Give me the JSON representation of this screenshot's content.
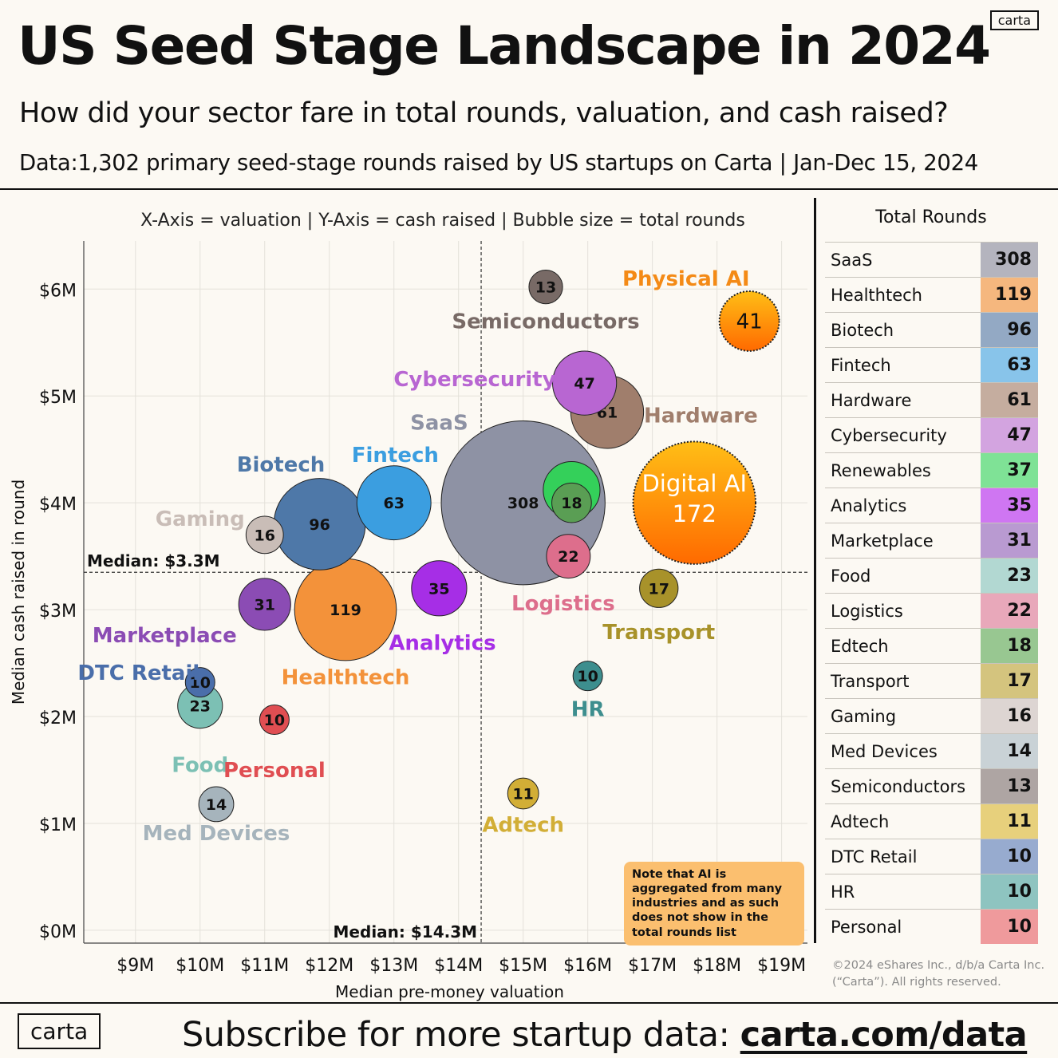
{
  "header": {
    "title": "US Seed Stage Landscape in 2024",
    "subtitle": "How did your sector fare in total rounds, valuation, and cash raised?",
    "data_note": "Data:1,302 primary seed-stage rounds raised by US startups on Carta | Jan-Dec 15, 2024",
    "brand": "carta"
  },
  "chart_data": {
    "type": "scatter",
    "title": "US Seed Stage Landscape in 2024",
    "legend_text": "X-Axis = valuation | Y-Axis = cash raised | Bubble size = total rounds",
    "xlabel": "Median pre-money valuation",
    "ylabel": "Median cash raised in round",
    "xlim": [
      8.2,
      19.4
    ],
    "ylim": [
      -0.12,
      6.45
    ],
    "xticks": [
      9,
      10,
      11,
      12,
      13,
      14,
      15,
      16,
      17,
      18,
      19
    ],
    "xtick_labels": [
      "$9M",
      "$10M",
      "$11M",
      "$12M",
      "$13M",
      "$14M",
      "$15M",
      "$16M",
      "$17M",
      "$18M",
      "$19M"
    ],
    "yticks": [
      0,
      1,
      2,
      3,
      4,
      5,
      6
    ],
    "ytick_labels": [
      "$0M",
      "$1M",
      "$2M",
      "$3M",
      "$4M",
      "$5M",
      "$6M"
    ],
    "grid": true,
    "median_x": 14.35,
    "median_y": 3.35,
    "median_x_label": "Median: $14.3M",
    "median_y_label": "Median: $3.3M",
    "series": [
      {
        "name": "SaaS",
        "x": 15.0,
        "y": 4.0,
        "rounds": 308,
        "color": "#8e92a4"
      },
      {
        "name": "Digital AI",
        "x": 17.65,
        "y": 4.0,
        "rounds": 172,
        "color": "#ff8f00",
        "ai": true
      },
      {
        "name": "Healthtech",
        "x": 12.25,
        "y": 3.0,
        "rounds": 119,
        "color": "#f3923a"
      },
      {
        "name": "Biotech",
        "x": 11.85,
        "y": 3.8,
        "rounds": 96,
        "color": "#4e78a8"
      },
      {
        "name": "Fintech",
        "x": 13.0,
        "y": 4.0,
        "rounds": 63,
        "color": "#3b9ee0"
      },
      {
        "name": "Hardware",
        "x": 16.3,
        "y": 4.85,
        "rounds": 61,
        "color": "#a07e6c"
      },
      {
        "name": "Cybersecurity",
        "x": 15.95,
        "y": 5.12,
        "rounds": 47,
        "color": "#b866d2"
      },
      {
        "name": "Physical AI",
        "x": 18.5,
        "y": 5.7,
        "rounds": 41,
        "color": "#ff8c00",
        "ai": true
      },
      {
        "name": "Renewables",
        "x": 15.75,
        "y": 4.12,
        "rounds": 37,
        "color": "#34d05a"
      },
      {
        "name": "Analytics",
        "x": 13.7,
        "y": 3.2,
        "rounds": 35,
        "color": "#a62ee6"
      },
      {
        "name": "Marketplace",
        "x": 11.0,
        "y": 3.05,
        "rounds": 31,
        "color": "#8b4cb4"
      },
      {
        "name": "Food",
        "x": 10.0,
        "y": 2.1,
        "rounds": 23,
        "color": "#7cc0b4"
      },
      {
        "name": "Logistics",
        "x": 15.7,
        "y": 3.5,
        "rounds": 22,
        "color": "#dd6e8c"
      },
      {
        "name": "Edtech",
        "x": 15.75,
        "y": 4.0,
        "rounds": 18,
        "color": "#5a9e54"
      },
      {
        "name": "Transport",
        "x": 17.1,
        "y": 3.2,
        "rounds": 17,
        "color": "#a8922a"
      },
      {
        "name": "Gaming",
        "x": 11.0,
        "y": 3.7,
        "rounds": 16,
        "color": "#c9bdb7"
      },
      {
        "name": "Med Devices",
        "x": 10.25,
        "y": 1.18,
        "rounds": 14,
        "color": "#a6b4bc"
      },
      {
        "name": "Semiconductors",
        "x": 15.35,
        "y": 6.02,
        "rounds": 13,
        "color": "#786a66"
      },
      {
        "name": "Adtech",
        "x": 15.0,
        "y": 1.28,
        "rounds": 11,
        "color": "#d2ae36"
      },
      {
        "name": "DTC Retail",
        "x": 10.0,
        "y": 2.32,
        "rounds": 10,
        "color": "#4a6eaa"
      },
      {
        "name": "HR",
        "x": 16.0,
        "y": 2.38,
        "rounds": 10,
        "color": "#3d8e8e"
      },
      {
        "name": "Personal",
        "x": 11.15,
        "y": 1.97,
        "rounds": 10,
        "color": "#e04e52"
      }
    ],
    "labels": [
      {
        "text": "SaaS",
        "x": 13.7,
        "y": 4.75,
        "color": "#8e92a4"
      },
      {
        "text": "Physical AI",
        "x": 17.52,
        "y": 6.1,
        "color": "#f48a16"
      },
      {
        "text": "Semiconductors",
        "x": 15.35,
        "y": 5.7,
        "color": "#786a66"
      },
      {
        "text": "Cybersecurity",
        "x": 14.25,
        "y": 5.16,
        "color": "#b866d2"
      },
      {
        "text": "Hardware",
        "x": 17.75,
        "y": 4.82,
        "color": "#a07e6c"
      },
      {
        "text": "Fintech",
        "x": 13.02,
        "y": 4.45,
        "color": "#3b9ee0"
      },
      {
        "text": "Biotech",
        "x": 11.25,
        "y": 4.36,
        "color": "#4e78a8"
      },
      {
        "text": "Gaming",
        "x": 10.0,
        "y": 3.85,
        "color": "#c9bdb7"
      },
      {
        "text": "Logistics",
        "x": 15.62,
        "y": 3.06,
        "color": "#dd6e8c"
      },
      {
        "text": "Transport",
        "x": 17.1,
        "y": 2.79,
        "color": "#a8922a"
      },
      {
        "text": "Analytics",
        "x": 13.75,
        "y": 2.69,
        "color": "#a62ee6"
      },
      {
        "text": "Marketplace",
        "x": 9.45,
        "y": 2.76,
        "color": "#8b4cb4"
      },
      {
        "text": "DTC Retail",
        "x": 9.05,
        "y": 2.41,
        "color": "#4a6eaa"
      },
      {
        "text": "Healthtech",
        "x": 12.25,
        "y": 2.37,
        "color": "#f3923a"
      },
      {
        "text": "HR",
        "x": 16.0,
        "y": 2.07,
        "color": "#3d8e8e"
      },
      {
        "text": "Food",
        "x": 10.0,
        "y": 1.55,
        "color": "#7cc0b4"
      },
      {
        "text": "Personal",
        "x": 11.15,
        "y": 1.5,
        "color": "#e04e52"
      },
      {
        "text": "Med Devices",
        "x": 10.25,
        "y": 0.91,
        "color": "#a6b4bc"
      },
      {
        "text": "Adtech",
        "x": 15.0,
        "y": 0.99,
        "color": "#d2ae36"
      }
    ],
    "note": "Note that AI is aggregated from many industries and as such does not show in the total rounds list"
  },
  "rounds_table": {
    "title": "Total Rounds",
    "rows": [
      {
        "name": "SaaS",
        "value": 308,
        "color": "#b4b4be"
      },
      {
        "name": "Healthtech",
        "value": 119,
        "color": "#f5b77e"
      },
      {
        "name": "Biotech",
        "value": 96,
        "color": "#93a9c4"
      },
      {
        "name": "Fintech",
        "value": 63,
        "color": "#88c4ea"
      },
      {
        "name": "Hardware",
        "value": 61,
        "color": "#c5ad9f"
      },
      {
        "name": "Cybersecurity",
        "value": 47,
        "color": "#d3a4e0"
      },
      {
        "name": "Renewables",
        "value": 37,
        "color": "#7fe296"
      },
      {
        "name": "Analytics",
        "value": 35,
        "color": "#cf76f2"
      },
      {
        "name": "Marketplace",
        "value": 31,
        "color": "#b99ad1"
      },
      {
        "name": "Food",
        "value": 23,
        "color": "#b2d8d2"
      },
      {
        "name": "Logistics",
        "value": 22,
        "color": "#e8a8ba"
      },
      {
        "name": "Edtech",
        "value": 18,
        "color": "#98c791"
      },
      {
        "name": "Transport",
        "value": 17,
        "color": "#d4c47e"
      },
      {
        "name": "Gaming",
        "value": 16,
        "color": "#ddd5d2"
      },
      {
        "name": "Med Devices",
        "value": 14,
        "color": "#c9d2d6"
      },
      {
        "name": "Semiconductors",
        "value": 13,
        "color": "#aea5a3"
      },
      {
        "name": "Adtech",
        "value": 11,
        "color": "#e7d07c"
      },
      {
        "name": "DTC Retail",
        "value": 10,
        "color": "#97abcf"
      },
      {
        "name": "HR",
        "value": 10,
        "color": "#8ec4c0"
      },
      {
        "name": "Personal",
        "value": 10,
        "color": "#ef9a9c"
      }
    ]
  },
  "copyright": "©2024 eShares Inc., d/b/a Carta Inc. (“Carta”). All rights reserved.",
  "footer": {
    "brand": "carta",
    "text": "Subscribe for more startup data:",
    "link": "carta.com/data"
  }
}
